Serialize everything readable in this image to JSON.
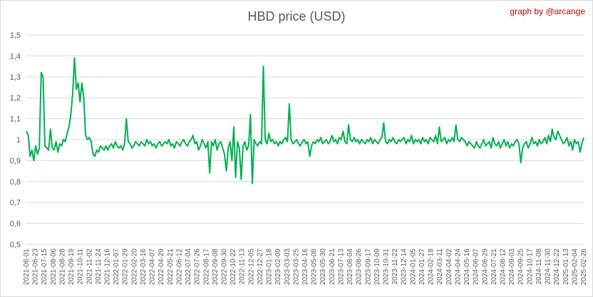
{
  "chart_data": {
    "type": "line",
    "title": "HBD price (USD)",
    "credit": "graph by @arcange",
    "xlabel": "",
    "ylabel": "",
    "ylim": [
      0.5,
      1.5
    ],
    "yticks": [
      "0,5",
      "0,6",
      "0,7",
      "0,8",
      "0,9",
      "1",
      "1,1",
      "1,2",
      "1,3",
      "1,4",
      "1,5"
    ],
    "grid": true,
    "legend": "none",
    "line_color": "#00b050",
    "xticks": [
      "2021-06-01",
      "2021-06-23",
      "2021-07-15",
      "2021-08-06",
      "2021-08-28",
      "2021-09-19",
      "2021-10-11",
      "2021-11-02",
      "2021-11-24",
      "2021-12-16",
      "2022-01-07",
      "2022-01-29",
      "2022-02-20",
      "2022-03-16",
      "2022-04-07",
      "2022-04-29",
      "2022-05-21",
      "2022-06-12",
      "2022-07-04",
      "2022-07-26",
      "2022-08-17",
      "2022-09-08",
      "2022-09-30",
      "2022-10-22",
      "2022-11-13",
      "2022-12-05",
      "2022-12-27",
      "2023-01-18",
      "2023-02-09",
      "2023-03-03",
      "2023-03-25",
      "2023-04-16",
      "2023-05-08",
      "2023-05-30",
      "2023-06-21",
      "2023-07-13",
      "2023-08-04",
      "2023-08-26",
      "2023-09-17",
      "2023-10-09",
      "2023-10-31",
      "2023-11-22",
      "2023-12-14",
      "2024-01-05",
      "2024-01-27",
      "2024-02-18",
      "2024-03-11",
      "2024-04-02",
      "2024-04-24",
      "2024-05-16",
      "2024-06-07",
      "2024-06-29",
      "2024-07-21",
      "2024-08-12",
      "2024-09-03",
      "2024-09-25",
      "2024-10-17",
      "2024-11-08",
      "2024-11-30",
      "2024-12-22",
      "2025-01-13",
      "2025-02-04",
      "2025-02-26"
    ],
    "series": [
      {
        "values": [
          1.04,
          1.02,
          0.92,
          0.95,
          0.9,
          0.97,
          0.93,
          0.96,
          1.32,
          1.3,
          0.97,
          0.96,
          0.95,
          1.05,
          0.96,
          0.95,
          0.99,
          0.94,
          0.98,
          0.97,
          1.0,
          0.99,
          1.03,
          1.06,
          1.12,
          1.22,
          1.39,
          1.24,
          1.27,
          1.18,
          1.27,
          1.2,
          1.02,
          1.0,
          1.01,
          0.99,
          0.93,
          0.92,
          0.95,
          0.94,
          0.97,
          0.96,
          0.95,
          0.97,
          0.95,
          0.97,
          0.98,
          0.96,
          0.99,
          0.97,
          0.96,
          0.97,
          0.95,
          0.98,
          1.1,
          0.99,
          0.98,
          0.96,
          0.97,
          0.99,
          0.98,
          0.97,
          0.99,
          0.98,
          0.97,
          1.0,
          0.98,
          0.99,
          0.97,
          0.98,
          0.96,
          0.98,
          0.99,
          0.97,
          0.98,
          0.99,
          0.98,
          1.0,
          0.97,
          0.98,
          0.96,
          0.99,
          0.98,
          0.97,
          0.99,
          1.0,
          0.98,
          0.97,
          0.99,
          1.0,
          1.02,
          0.98,
          0.99,
          0.95,
          0.97,
          1.0,
          0.98,
          0.96,
          0.99,
          0.84,
          0.99,
          0.97,
          1.0,
          0.95,
          0.98,
          0.99,
          0.96,
          0.93,
          0.85,
          0.96,
          0.99,
          0.9,
          1.06,
          0.82,
          0.99,
          0.96,
          0.81,
          0.97,
          0.99,
          0.95,
          0.97,
          1.12,
          0.79,
          1.0,
          0.98,
          0.97,
          0.99,
          0.98,
          1.35,
          1.0,
          0.98,
          1.03,
          0.99,
          1.0,
          0.98,
          0.99,
          0.97,
          0.99,
          0.98,
          1.0,
          1.01,
          0.99,
          1.17,
          1.0,
          0.98,
          0.99,
          1.0,
          0.98,
          0.97,
          0.99,
          1.0,
          0.98,
          0.99,
          0.92,
          0.97,
          0.99,
          0.98,
          1.0,
          0.99,
          1.01,
          0.98,
          0.99,
          1.0,
          0.98,
          0.99,
          1.02,
          0.99,
          1.0,
          0.98,
          1.01,
          1.0,
          1.04,
          0.99,
          0.98,
          1.07,
          1.0,
          0.99,
          1.01,
          0.99,
          1.0,
          0.98,
          1.0,
          0.99,
          0.98,
          1.0,
          0.99,
          1.01,
          0.98,
          1.0,
          0.99,
          0.98,
          1.0,
          1.01,
          1.08,
          0.99,
          0.98,
          1.0,
          0.99,
          1.01,
          0.99,
          0.98,
          1.0,
          0.99,
          1.0,
          1.01,
          0.98,
          1.0,
          0.99,
          1.02,
          0.98,
          1.0,
          0.99,
          1.0,
          0.98,
          1.01,
          0.99,
          1.0,
          0.98,
          1.01,
          1.0,
          0.99,
          1.02,
          0.98,
          1.06,
          0.99,
          1.0,
          1.01,
          0.98,
          1.0,
          0.99,
          1.01,
          0.99,
          1.07,
          1.0,
          0.99,
          1.01,
          1.0,
          0.99,
          0.97,
          0.99,
          0.98,
          0.97,
          0.96,
          0.99,
          0.97,
          0.96,
          0.98,
          1.0,
          0.97,
          0.98,
          0.99,
          0.96,
          1.01,
          0.98,
          0.97,
          0.99,
          0.96,
          0.98,
          1.0,
          0.97,
          0.99,
          0.96,
          0.98,
          0.97,
          0.99,
          1.0,
          0.98,
          0.89,
          0.96,
          0.98,
          0.99,
          0.96,
          0.98,
          1.01,
          0.98,
          0.99,
          0.97,
          1.0,
          0.98,
          0.99,
          1.01,
          0.98,
          1.02,
          0.99,
          1.05,
          1.01,
          1.0,
          1.04,
          1.02,
          1.0,
          0.98,
          0.99,
          1.01,
          0.97,
          0.99,
          0.95,
          1.0,
          0.98,
          0.99,
          0.94,
          0.98,
          1.01
        ]
      }
    ]
  }
}
